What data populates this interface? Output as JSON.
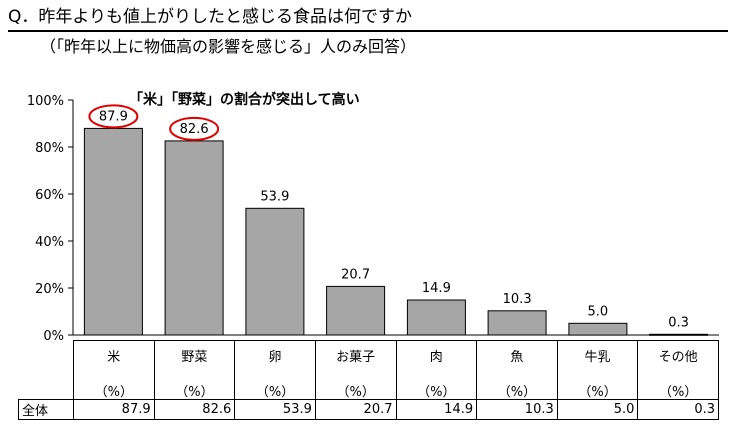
{
  "question": {
    "title": "Q．昨年よりも値上がりしたと感じる食品は何ですか",
    "subtitle": "（「昨年以上に物価高の影響を感じる」人のみ回答）"
  },
  "annotation": "「米」「野菜」の割合が突出して高い",
  "table": {
    "unit_label": "（%）",
    "row_label": "全体"
  },
  "colors": {
    "bar": "#a6a6a6",
    "bar_stroke": "#000000",
    "highlight_circle": "#e00000"
  },
  "chart_data": {
    "type": "bar",
    "categories": [
      "米",
      "野菜",
      "卵",
      "お菓子",
      "肉",
      "魚",
      "牛乳",
      "その他"
    ],
    "values": [
      87.9,
      82.6,
      53.9,
      20.7,
      14.9,
      10.3,
      5.0,
      0.3
    ],
    "value_labels": [
      "87.9",
      "82.6",
      "53.9",
      "20.7",
      "14.9",
      "10.3",
      "5.0",
      "0.3"
    ],
    "highlighted": [
      "米",
      "野菜"
    ],
    "ylim": [
      0,
      100
    ],
    "yticks": [
      "0%",
      "20%",
      "40%",
      "60%",
      "80%",
      "100%"
    ],
    "grid": false,
    "legend": "none"
  }
}
